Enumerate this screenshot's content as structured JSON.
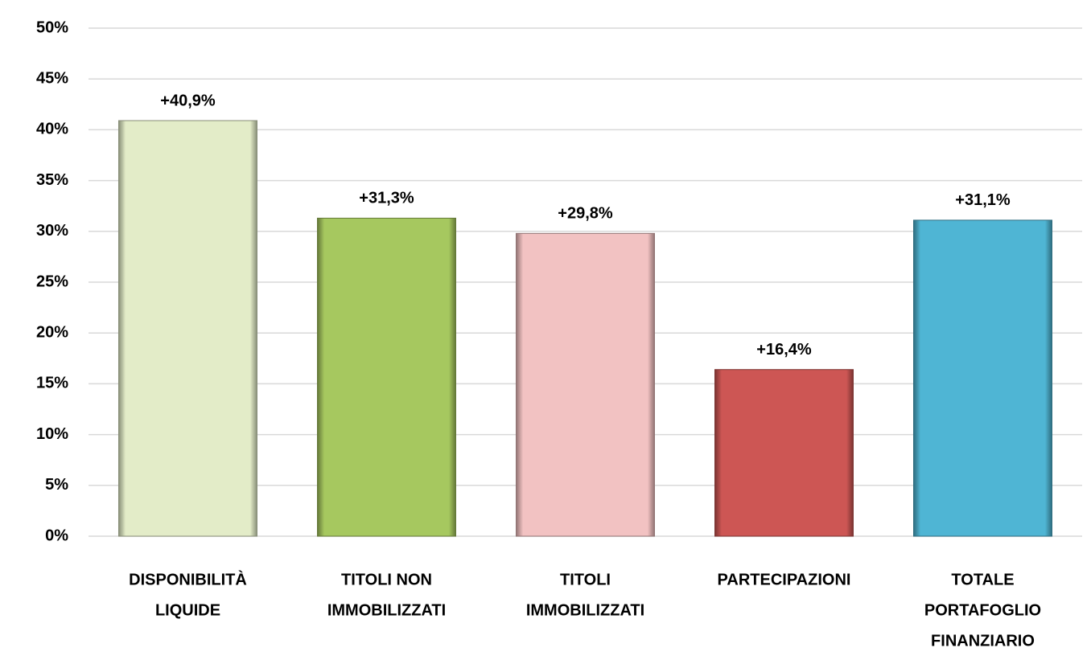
{
  "chart_data": {
    "type": "bar",
    "categories": [
      [
        "DISPONIBILITÀ",
        "LIQUIDE"
      ],
      [
        "TITOLI NON",
        "IMMOBILIZZATI"
      ],
      [
        "TITOLI",
        "IMMOBILIZZATI"
      ],
      [
        "PARTECIPAZIONI"
      ],
      [
        "TOTALE",
        "PORTAFOGLIO",
        "FINANZIARIO"
      ]
    ],
    "values": [
      40.9,
      31.3,
      29.8,
      16.4,
      31.1
    ],
    "value_labels": [
      "+40,9%",
      "+31,3%",
      "+29,8%",
      "+16,4%",
      "+31,1%"
    ],
    "colors": [
      "#e3ecc8",
      "#a6c85f",
      "#f2c2c2",
      "#cd5654",
      "#4fb5d4"
    ],
    "ylim": [
      0,
      50
    ],
    "yticks": [
      {
        "value": 0,
        "label": "0%"
      },
      {
        "value": 5,
        "label": "5%"
      },
      {
        "value": 10,
        "label": "10%"
      },
      {
        "value": 15,
        "label": "15%"
      },
      {
        "value": 20,
        "label": "20%"
      },
      {
        "value": 25,
        "label": "25%"
      },
      {
        "value": 30,
        "label": "30%"
      },
      {
        "value": 35,
        "label": "35%"
      },
      {
        "value": 40,
        "label": "40%"
      },
      {
        "value": 45,
        "label": "45%"
      },
      {
        "value": 50,
        "label": "50%"
      }
    ],
    "grid": true
  }
}
